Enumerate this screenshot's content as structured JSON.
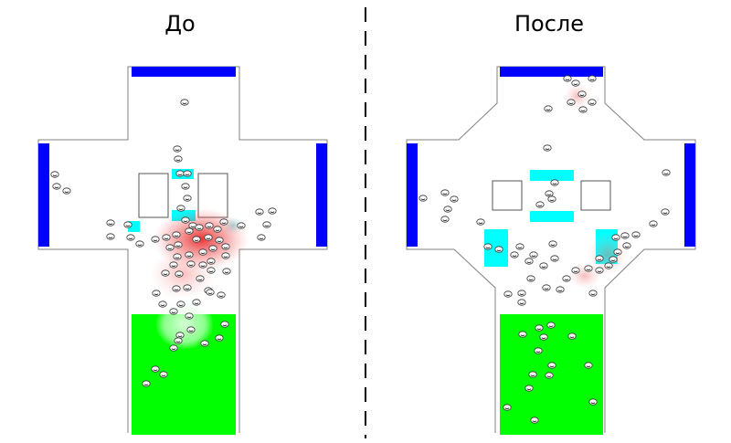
{
  "panels": {
    "left": {
      "title": "До"
    },
    "right": {
      "title": "После"
    }
  },
  "colors": {
    "exit": "#0000ff",
    "obstacle_cyan": "#00ffff",
    "start_zone": "#00ff00",
    "wall": "#808080",
    "divider": "#000000",
    "congestion": "#e60000"
  }
}
